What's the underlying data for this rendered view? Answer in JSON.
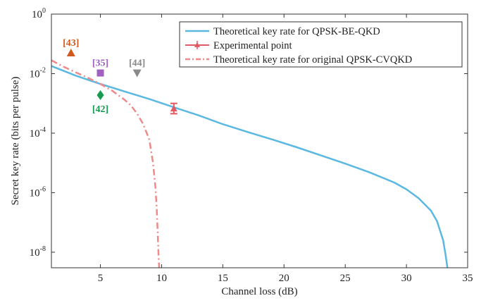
{
  "chart_data": {
    "type": "line",
    "xlabel": "Channel loss (dB)",
    "ylabel": "Secret key rate (bits per pulse)",
    "xlim": [
      1,
      35
    ],
    "ylim": [
      3e-09,
      1
    ],
    "yscale": "log",
    "x_ticks": [
      5,
      10,
      15,
      20,
      25,
      30,
      35
    ],
    "x_tick_labels": [
      "5",
      "10",
      "15",
      "20",
      "25",
      "30",
      "35"
    ],
    "y_ticks": [
      {
        "value": 1,
        "base": "10",
        "exp": "0"
      },
      {
        "value": 0.01,
        "base": "10",
        "exp": "-2"
      },
      {
        "value": 0.0001,
        "base": "10",
        "exp": "-4"
      },
      {
        "value": 1e-06,
        "base": "10",
        "exp": "-6"
      },
      {
        "value": 1e-08,
        "base": "10",
        "exp": "-8"
      }
    ],
    "grid": false,
    "legend_position": "top-right",
    "series": [
      {
        "name": "Theoretical key rate for QPSK-BE-QKD",
        "style": "solid",
        "color": "#5bb8e0",
        "x": [
          1,
          3,
          5,
          7,
          9,
          11,
          13,
          15,
          17,
          19,
          21,
          23,
          25,
          27,
          29,
          30,
          31,
          32,
          32.5,
          33,
          33.2,
          33.35
        ],
        "y": [
          0.018,
          0.0085,
          0.0045,
          0.0025,
          0.0014,
          0.00074,
          0.0004,
          0.0002,
          0.00011,
          6.2e-05,
          3.4e-05,
          1.8e-05,
          9.5e-06,
          4.8e-06,
          2.2e-06,
          1.3e-06,
          6.5e-07,
          2.5e-07,
          1.1e-07,
          2.5e-08,
          8e-09,
          3e-09
        ]
      },
      {
        "name": "Experimental point",
        "style": "errorbar",
        "color": "#e05a64",
        "x": [
          11
        ],
        "y": [
          0.00067
        ],
        "y_err_low": [
          0.00045
        ],
        "y_err_high": [
          0.001
        ]
      },
      {
        "name": "Theoretical key rate for original QPSK-CVQKD",
        "style": "dashdot",
        "color": "#f08a8a",
        "x": [
          1,
          2,
          3,
          4,
          5,
          6,
          7,
          7.5,
          8,
          8.5,
          9,
          9.3,
          9.5,
          9.6,
          9.7,
          9.75,
          9.8
        ],
        "y": [
          0.028,
          0.017,
          0.011,
          0.0072,
          0.0045,
          0.0026,
          0.0013,
          0.00085,
          0.00045,
          0.0002,
          6e-05,
          1e-05,
          1.5e-06,
          3e-07,
          3e-08,
          8e-09,
          3e-09
        ]
      }
    ],
    "annotations": [
      {
        "label": "[43]",
        "x": 2.6,
        "y": 0.05,
        "marker": "triangle-up",
        "color": "#d05a1e",
        "label_pos": "above"
      },
      {
        "label": "[35]",
        "x": 5,
        "y": 0.0105,
        "marker": "square",
        "color": "#a060c0",
        "label_pos": "above"
      },
      {
        "label": "[44]",
        "x": 8,
        "y": 0.0105,
        "marker": "triangle-down",
        "color": "#8a8a8a",
        "label_pos": "above"
      },
      {
        "label": "[42]",
        "x": 5,
        "y": 0.0019,
        "marker": "diamond",
        "color": "#169a50",
        "label_pos": "below"
      }
    ]
  }
}
